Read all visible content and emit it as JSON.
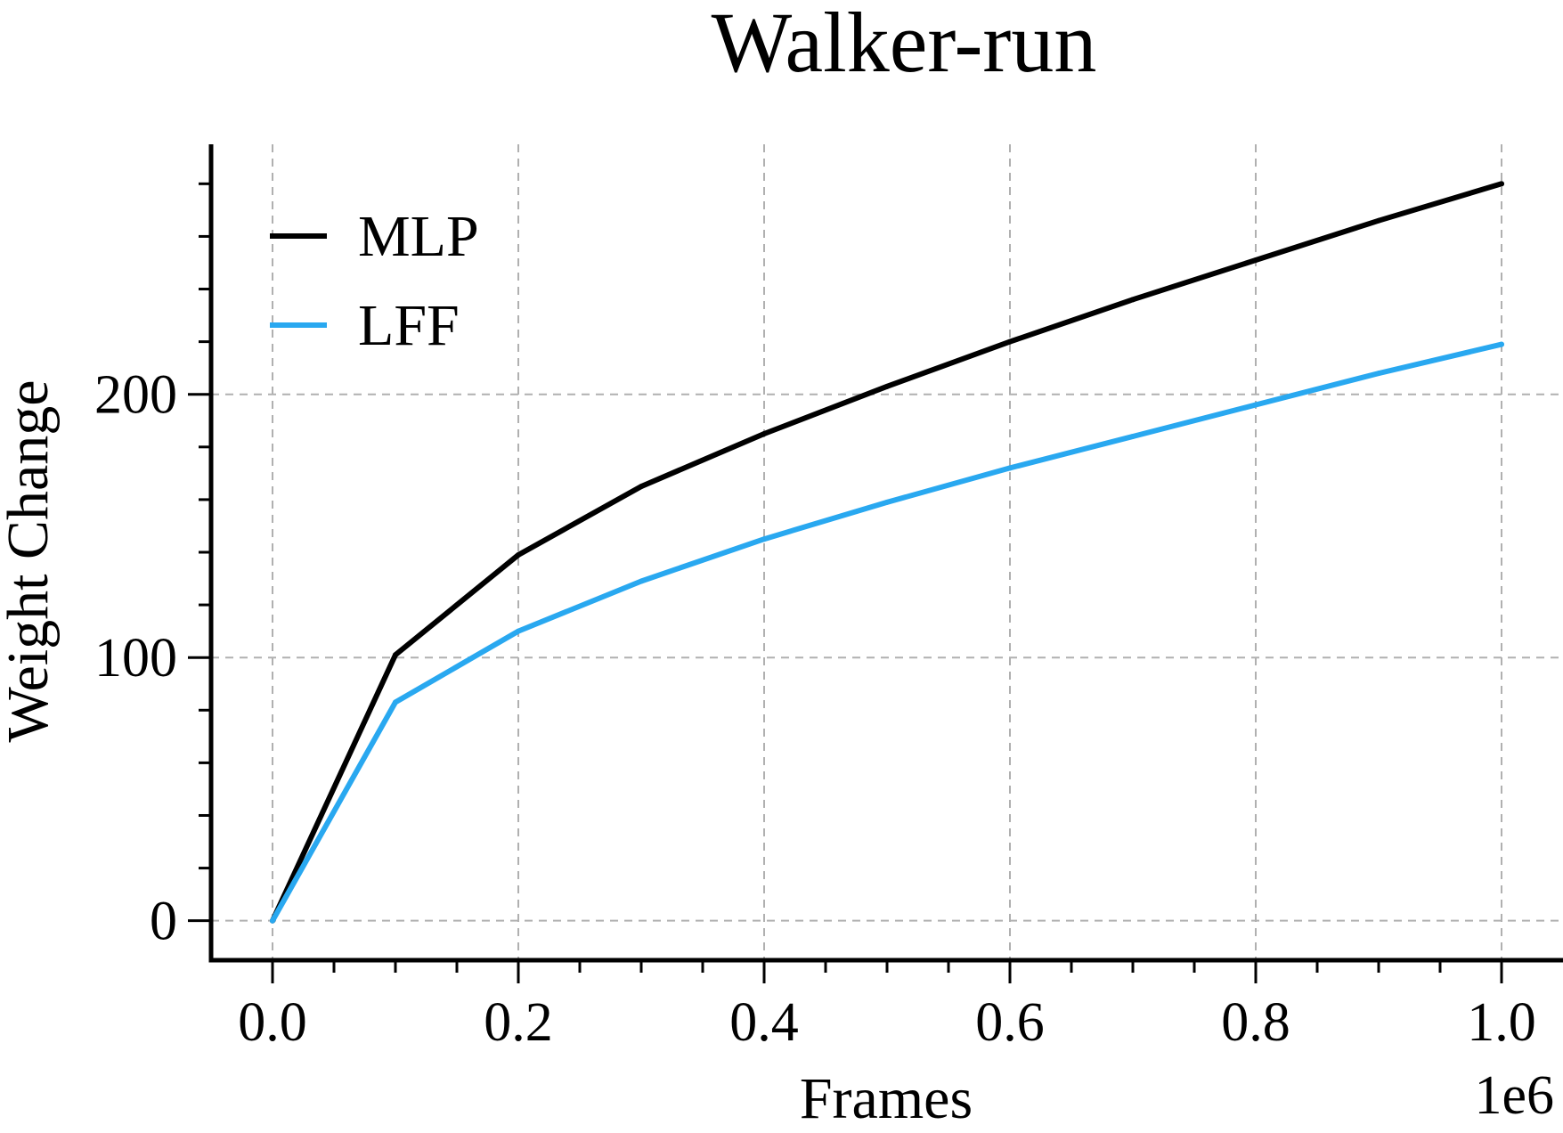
{
  "chart_data": {
    "type": "line",
    "title": "Walker-run",
    "xlabel": "Frames",
    "ylabel": "Weight Change",
    "x_offset_label": "1e6",
    "xlim": [
      -0.05,
      1.05
    ],
    "ylim": [
      -15,
      295
    ],
    "xticks": [
      "0.0",
      "0.2",
      "0.4",
      "0.6",
      "0.8",
      "1.0"
    ],
    "xtick_values": [
      0.0,
      0.2,
      0.4,
      0.6,
      0.8,
      1.0
    ],
    "yticks": [
      "0",
      "100",
      "200"
    ],
    "ytick_values": [
      0,
      100,
      200
    ],
    "grid": true,
    "legend_position": "upper-left",
    "x": [
      0.0,
      0.1,
      0.2,
      0.3,
      0.4,
      0.5,
      0.6,
      0.7,
      0.8,
      0.9,
      1.0
    ],
    "series": [
      {
        "name": "MLP",
        "color": "#000000",
        "values": [
          0,
          101,
          139,
          165,
          185,
          203,
          220,
          236,
          251,
          266,
          280
        ]
      },
      {
        "name": "LFF",
        "color": "#29a8f0",
        "values": [
          0,
          83,
          110,
          129,
          145,
          159,
          172,
          184,
          196,
          208,
          219
        ]
      }
    ]
  }
}
